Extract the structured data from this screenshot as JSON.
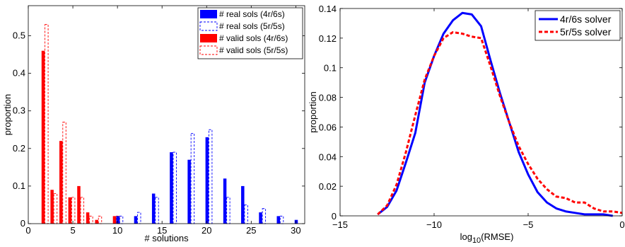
{
  "chart_data": [
    {
      "type": "bar",
      "xlabel": "# solutions",
      "ylabel": "proportion",
      "xlim": [
        0,
        31
      ],
      "ylim": [
        0,
        0.58
      ],
      "xticks": [
        0,
        5,
        10,
        15,
        20,
        25,
        30
      ],
      "yticks": [
        0,
        0.1,
        0.2,
        0.3,
        0.4,
        0.5
      ],
      "legend_position": "top-right",
      "series": [
        {
          "name": "# real sols (4r/6s)",
          "color": "#0000ff",
          "style": "filled",
          "points": [
            [
              10,
              0.02
            ],
            [
              12,
              0.02
            ],
            [
              14,
              0.08
            ],
            [
              16,
              0.19
            ],
            [
              18,
              0.17
            ],
            [
              20,
              0.23
            ],
            [
              22,
              0.12
            ],
            [
              24,
              0.1
            ],
            [
              26,
              0.03
            ],
            [
              28,
              0.02
            ],
            [
              30,
              0.01
            ]
          ]
        },
        {
          "name": "# real sols (5r/5s)",
          "color": "#0000ff",
          "style": "dashed",
          "points": [
            [
              10,
              0.02
            ],
            [
              12,
              0.03
            ],
            [
              14,
              0.07
            ],
            [
              16,
              0.19
            ],
            [
              18,
              0.24
            ],
            [
              20,
              0.25
            ],
            [
              22,
              0.07
            ],
            [
              24,
              0.05
            ],
            [
              26,
              0.04
            ],
            [
              28,
              0.02
            ]
          ]
        },
        {
          "name": "# valid sols (4r/6s)",
          "color": "#ff0000",
          "style": "filled",
          "points": [
            [
              2,
              0.46
            ],
            [
              3,
              0.09
            ],
            [
              4,
              0.22
            ],
            [
              5,
              0.07
            ],
            [
              6,
              0.1
            ],
            [
              7,
              0.03
            ],
            [
              8,
              0.01
            ],
            [
              10,
              0.02
            ]
          ]
        },
        {
          "name": "# valid sols (5r/5s)",
          "color": "#ff0000",
          "style": "dashed",
          "points": [
            [
              2,
              0.53
            ],
            [
              3,
              0.08
            ],
            [
              4,
              0.27
            ],
            [
              5,
              0.07
            ],
            [
              6,
              0.07
            ],
            [
              7,
              0.02
            ],
            [
              8,
              0.02
            ],
            [
              10,
              0.02
            ]
          ]
        }
      ]
    },
    {
      "type": "line",
      "xlabel_base": "log",
      "xlabel_sub": "10",
      "xlabel_rest": "(RMSE)",
      "ylabel": "proportion",
      "xlim": [
        -15,
        0
      ],
      "ylim": [
        0,
        0.14
      ],
      "xticks": [
        -15,
        -10,
        -5,
        0
      ],
      "xtick_labels": [
        "−15",
        "−10",
        "−5",
        "0"
      ],
      "yticks": [
        0,
        0.02,
        0.04,
        0.06,
        0.08,
        0.1,
        0.12,
        0.14
      ],
      "ytick_labels": [
        "0",
        "0.02",
        "0.04",
        "0.06",
        "0.08",
        "0.1",
        "0.12",
        "0.14"
      ],
      "legend_position": "top-right",
      "series": [
        {
          "name": "4r/6s solver",
          "color": "#0000ff",
          "style": "solid",
          "x": [
            -13,
            -12.5,
            -12,
            -11.5,
            -11,
            -10.5,
            -10,
            -9.5,
            -9,
            -8.5,
            -8,
            -7.5,
            -7,
            -6.5,
            -6,
            -5.5,
            -5,
            -4.5,
            -4,
            -3.5,
            -3,
            -2.5,
            -2,
            -1.5,
            -1,
            -0.5
          ],
          "y": [
            0.001,
            0.006,
            0.017,
            0.036,
            0.056,
            0.09,
            0.108,
            0.123,
            0.132,
            0.137,
            0.136,
            0.128,
            0.105,
            0.083,
            0.063,
            0.043,
            0.028,
            0.016,
            0.009,
            0.005,
            0.003,
            0.002,
            0.001,
            0.001,
            0.001,
            0.0
          ]
        },
        {
          "name": "5r/5s solver",
          "color": "#ff0000",
          "style": "dashed",
          "x": [
            -13,
            -12.5,
            -12,
            -11.5,
            -11,
            -10.5,
            -10,
            -9.5,
            -9,
            -8.5,
            -8,
            -7.5,
            -7,
            -6.5,
            -6,
            -5.5,
            -5,
            -4.5,
            -4,
            -3.5,
            -3,
            -2.5,
            -2,
            -1.5,
            -1,
            -0.5,
            0
          ],
          "y": [
            0.001,
            0.007,
            0.021,
            0.043,
            0.068,
            0.092,
            0.108,
            0.12,
            0.124,
            0.123,
            0.121,
            0.12,
            0.101,
            0.081,
            0.063,
            0.047,
            0.035,
            0.025,
            0.018,
            0.013,
            0.012,
            0.009,
            0.009,
            0.005,
            0.003,
            0.003,
            0.002
          ]
        }
      ]
    }
  ]
}
